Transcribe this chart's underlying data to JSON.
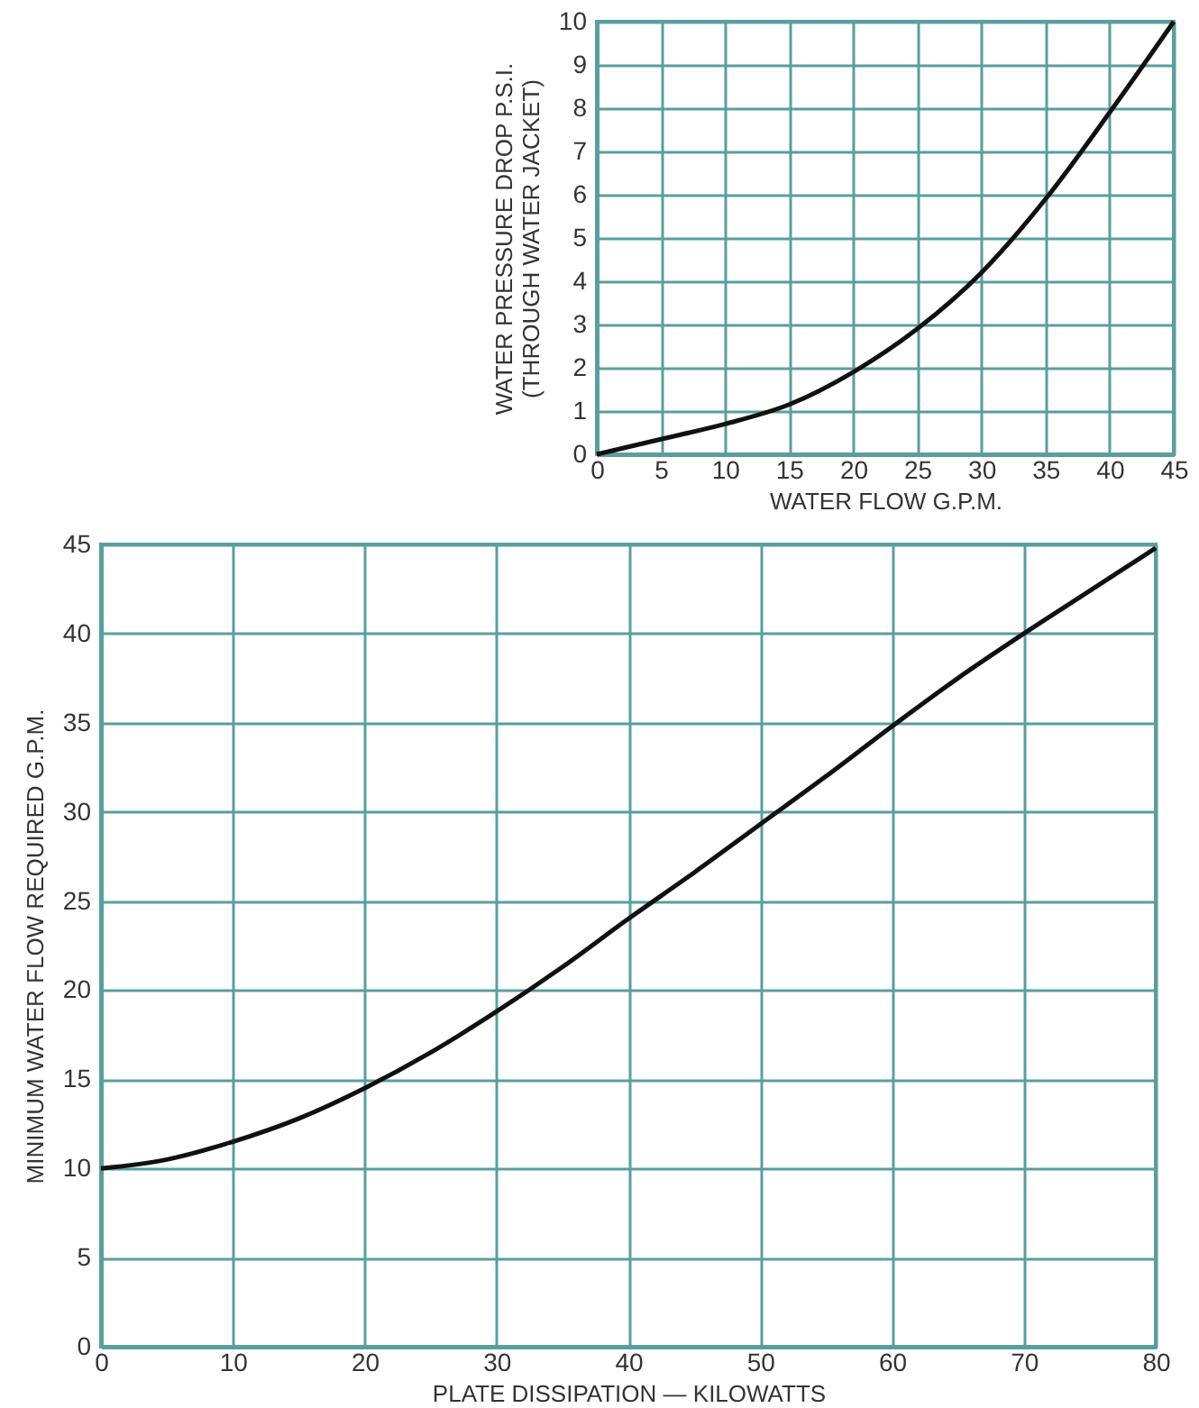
{
  "chart_data": [
    {
      "type": "line",
      "xlabel": "WATER FLOW G.P.M.",
      "ylabel": "WATER PRESSURE DROP P.S.I.\n(THROUGH WATER JACKET)",
      "x": [
        0,
        5,
        10,
        15,
        20,
        25,
        30,
        35,
        40,
        45
      ],
      "series": [
        {
          "color": "#111111",
          "values": [
            0,
            0.35,
            0.7,
            1.15,
            1.9,
            2.9,
            4.2,
            5.9,
            7.9,
            10
          ]
        }
      ],
      "xlim": [
        0,
        45
      ],
      "xticks": [
        0,
        5,
        10,
        15,
        20,
        25,
        30,
        35,
        40,
        45
      ],
      "ylim": [
        0,
        10
      ],
      "yticks": [
        0,
        1,
        2,
        3,
        4,
        5,
        6,
        7,
        8,
        9,
        10
      ],
      "grid": true,
      "marker": "none",
      "line_style": "solid"
    },
    {
      "type": "line",
      "xlabel": "PLATE DISSIPATION — KILOWATTS",
      "ylabel": "MINIMUM WATER FLOW REQUIRED G.P.M.",
      "x": [
        0,
        5,
        10,
        15,
        20,
        25,
        30,
        35,
        40,
        45,
        50,
        55,
        60,
        65,
        70,
        75,
        80
      ],
      "series": [
        {
          "color": "#111111",
          "values": [
            10,
            10.5,
            11.5,
            12.8,
            14.5,
            16.5,
            18.8,
            21.3,
            24,
            26.6,
            29.3,
            32,
            34.8,
            37.5,
            40,
            42.4,
            44.8
          ]
        }
      ],
      "xlim": [
        0,
        80
      ],
      "xticks": [
        0,
        10,
        20,
        30,
        40,
        50,
        60,
        70,
        80
      ],
      "ylim": [
        0,
        45
      ],
      "yticks": [
        0,
        5,
        10,
        15,
        20,
        25,
        30,
        35,
        40,
        45
      ],
      "grid": true,
      "marker": "none",
      "line_style": "solid"
    }
  ]
}
